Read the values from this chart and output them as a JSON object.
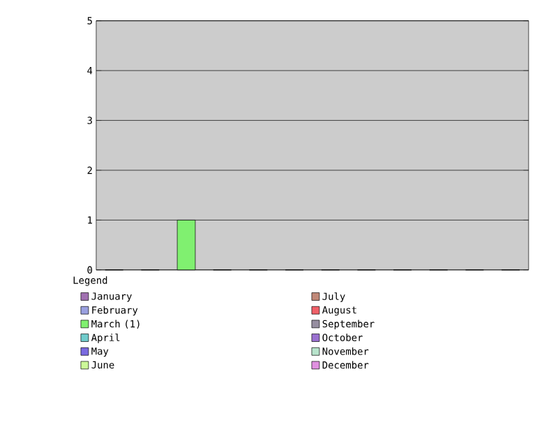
{
  "chart_data": {
    "type": "bar",
    "categories": [
      null
    ],
    "legend_title": "Legend",
    "ylim": [
      0,
      5
    ],
    "yticks": [
      0,
      1,
      2,
      3,
      4,
      5
    ],
    "grid": "y",
    "legend": "bottom",
    "series": [
      {
        "name": "January",
        "color": "#a070b0",
        "values": [
          0
        ]
      },
      {
        "name": "February",
        "color": "#9aa0e0",
        "values": [
          0
        ]
      },
      {
        "name": "March (1)",
        "color": "#80f070",
        "values": [
          1
        ]
      },
      {
        "name": "April",
        "color": "#70cccc",
        "values": [
          0
        ]
      },
      {
        "name": "May",
        "color": "#7a6ae0",
        "values": [
          0
        ]
      },
      {
        "name": "June",
        "color": "#ccf898",
        "values": [
          0
        ]
      },
      {
        "name": "July",
        "color": "#c08878",
        "values": [
          0
        ]
      },
      {
        "name": "August",
        "color": "#f06068",
        "values": [
          0
        ]
      },
      {
        "name": "September",
        "color": "#968ea0",
        "values": [
          0
        ]
      },
      {
        "name": "October",
        "color": "#9a70d0",
        "values": [
          0
        ]
      },
      {
        "name": "November",
        "color": "#b8e4cc",
        "values": [
          0
        ]
      },
      {
        "name": "December",
        "color": "#e090e0",
        "values": [
          0
        ]
      }
    ]
  }
}
